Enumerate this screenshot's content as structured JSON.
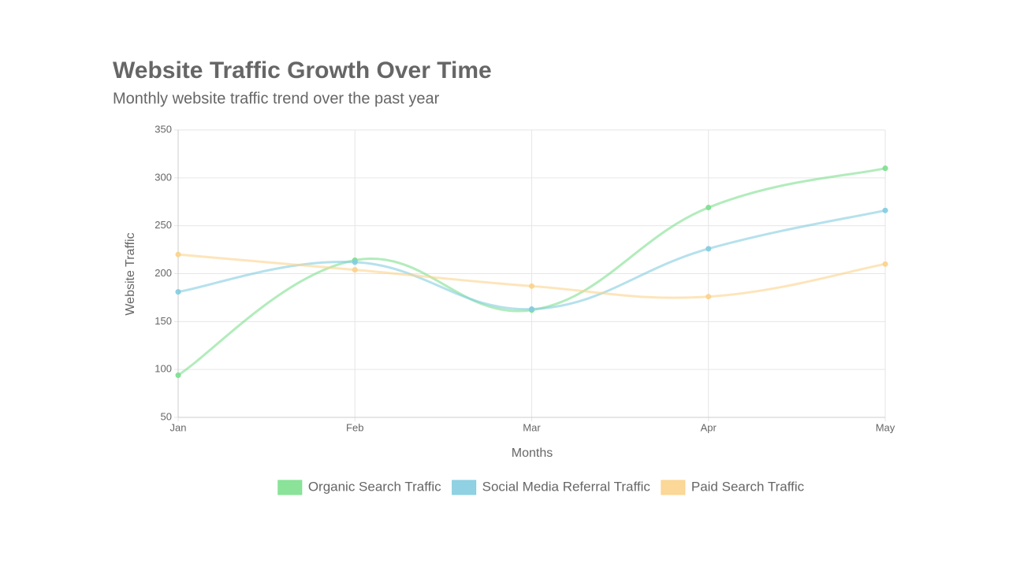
{
  "chart_data": {
    "type": "line",
    "title": "Website Traffic Growth Over Time",
    "subtitle": "Monthly website traffic trend over the past year",
    "x_label": "Months",
    "y_label": "Website Traffic",
    "categories": [
      "Jan",
      "Feb",
      "Mar",
      "Apr",
      "May"
    ],
    "series": [
      {
        "name": "Organic Search Traffic",
        "color": "#7ee08f",
        "values": [
          94,
          214,
          162,
          269,
          310
        ]
      },
      {
        "name": "Social Media Referral Traffic",
        "color": "#84cde0",
        "values": [
          181,
          212,
          163,
          226,
          266
        ]
      },
      {
        "name": "Paid Search Traffic",
        "color": "#fbd38d",
        "values": [
          220,
          204,
          187,
          176,
          210
        ]
      }
    ],
    "ylim": [
      50,
      350
    ],
    "yticks": [
      50,
      100,
      150,
      200,
      250,
      300,
      350
    ],
    "grid": true,
    "legend": "bottom"
  }
}
